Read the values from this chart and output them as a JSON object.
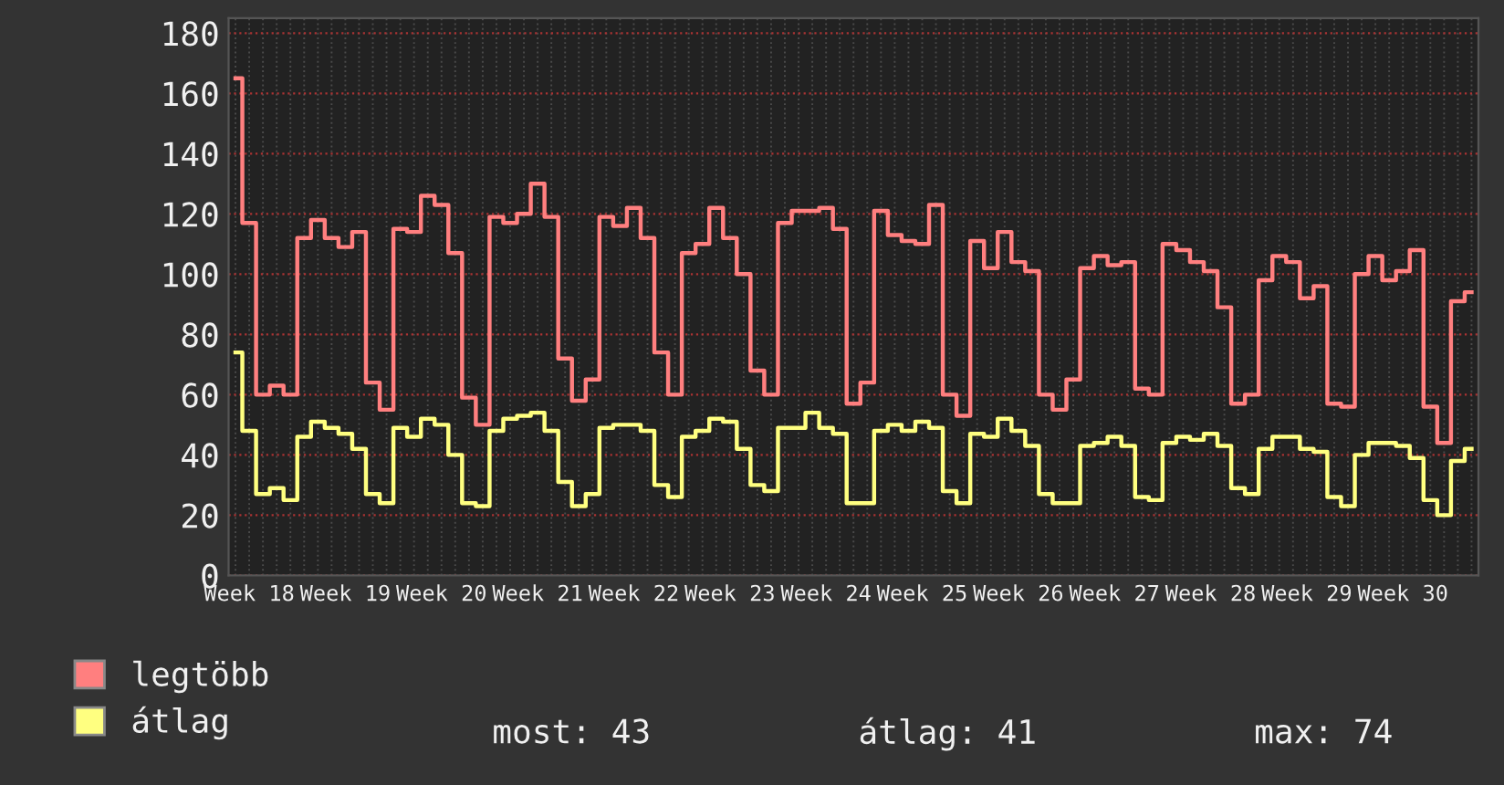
{
  "chart_data": {
    "type": "step",
    "categories": [
      null,
      "Week 18",
      null,
      null,
      null,
      null,
      null,
      null,
      "Week 19",
      null,
      null,
      null,
      null,
      null,
      null,
      "Week 20",
      null,
      null,
      null,
      null,
      null,
      null,
      "Week 21",
      null,
      null,
      null,
      null,
      null,
      null,
      "Week 22",
      null,
      null,
      null,
      null,
      null,
      null,
      "Week 23",
      null,
      null,
      null,
      null,
      null,
      null,
      "Week 24",
      null,
      null,
      null,
      null,
      null,
      null,
      "Week 25",
      null,
      null,
      null,
      null,
      null,
      null,
      "Week 26",
      null,
      null,
      null,
      null,
      null,
      null,
      "Week 27",
      null,
      null,
      null,
      null,
      null,
      null,
      "Week 28",
      null,
      null,
      null,
      null,
      null,
      null,
      "Week 29",
      null,
      null,
      null,
      null,
      null,
      null,
      "Week 30",
      null,
      null,
      null,
      null,
      null
    ],
    "series": [
      {
        "name": "legtöbb",
        "color": "#ff7f7f",
        "values": [
          165,
          117,
          60,
          63,
          60,
          112,
          118,
          112,
          109,
          114,
          64,
          55,
          115,
          114,
          126,
          123,
          107,
          59,
          50,
          119,
          117,
          120,
          130,
          119,
          72,
          58,
          65,
          119,
          116,
          122,
          112,
          74,
          60,
          107,
          110,
          122,
          112,
          100,
          68,
          60,
          117,
          121,
          121,
          122,
          115,
          57,
          64,
          121,
          113,
          111,
          110,
          123,
          60,
          53,
          111,
          102,
          114,
          104,
          101,
          60,
          55,
          65,
          102,
          106,
          103,
          104,
          62,
          60,
          110,
          108,
          104,
          101,
          89,
          57,
          60,
          98,
          106,
          104,
          92,
          96,
          57,
          56,
          100,
          106,
          98,
          101,
          108,
          56,
          44,
          91,
          94
        ]
      },
      {
        "name": "átlag",
        "color": "#ffff80",
        "values": [
          74,
          48,
          27,
          29,
          25,
          46,
          51,
          49,
          47,
          42,
          27,
          24,
          49,
          46,
          52,
          50,
          40,
          24,
          23,
          48,
          52,
          53,
          54,
          48,
          31,
          23,
          27,
          49,
          50,
          50,
          48,
          30,
          26,
          46,
          48,
          52,
          51,
          42,
          30,
          28,
          49,
          49,
          54,
          49,
          47,
          24,
          24,
          48,
          50,
          48,
          51,
          49,
          28,
          24,
          47,
          46,
          52,
          48,
          43,
          27,
          24,
          24,
          43,
          44,
          46,
          43,
          26,
          25,
          44,
          46,
          45,
          47,
          43,
          29,
          27,
          42,
          46,
          46,
          42,
          41,
          26,
          23,
          40,
          44,
          44,
          43,
          39,
          25,
          20,
          38,
          42
        ]
      }
    ],
    "ylim": [
      0,
      185
    ],
    "yticks": [
      0,
      20,
      40,
      60,
      80,
      100,
      120,
      140,
      160,
      180
    ],
    "grid": true,
    "legend": "bottom",
    "annotations": [
      "most: 43",
      "átlag: 41",
      "max: 74"
    ]
  }
}
